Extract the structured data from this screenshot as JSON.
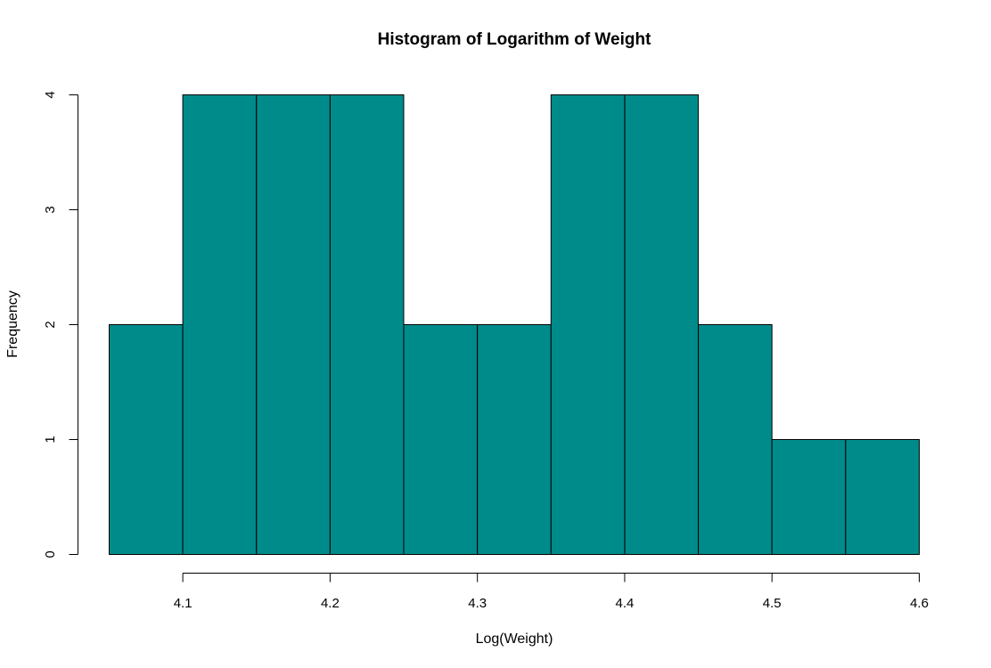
{
  "chart_data": {
    "type": "bar",
    "title": "Histogram of Logarithm of Weight",
    "xlabel": "Log(Weight)",
    "ylabel": "Frequency",
    "bin_edges": [
      4.05,
      4.1,
      4.15,
      4.2,
      4.25,
      4.3,
      4.35,
      4.4,
      4.45,
      4.5,
      4.55,
      4.6
    ],
    "values": [
      2,
      4,
      4,
      4,
      2,
      2,
      4,
      4,
      2,
      1,
      1
    ],
    "xlim": [
      4.05,
      4.6
    ],
    "ylim": [
      0,
      4
    ],
    "x_ticks": [
      "4.1",
      "4.2",
      "4.3",
      "4.4",
      "4.5",
      "4.6"
    ],
    "y_ticks": [
      "0",
      "1",
      "2",
      "3",
      "4"
    ],
    "bar_color": "#008B8B",
    "grid": false
  }
}
